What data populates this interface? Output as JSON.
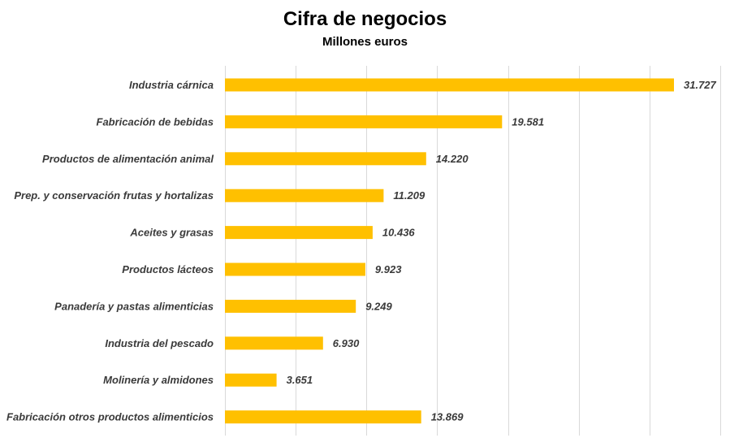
{
  "chart_data": {
    "type": "bar",
    "orientation": "horizontal",
    "title": "Cifra de negocios",
    "subtitle": "Millones euros",
    "categories": [
      "Industria cárnica",
      "Fabricación de bebidas",
      "Productos de alimentación animal",
      "Prep. y conservación frutas y hortalizas",
      "Aceites y grasas",
      "Productos lácteos",
      "Panadería y pastas alimenticias",
      "Industria del pescado",
      "Molinería y almidones",
      "Fabricación otros productos alimenticios"
    ],
    "values": [
      31727,
      19581,
      14220,
      11209,
      10436,
      9923,
      9249,
      6930,
      3651,
      13869
    ],
    "value_labels": [
      "31.727",
      "19.581",
      "14.220",
      "11.209",
      "10.436",
      "9.923",
      "9.249",
      "6.930",
      "3.651",
      "13.869"
    ],
    "xlim": [
      0,
      35000
    ],
    "x_tick_step": 5000,
    "grid": true,
    "x_tick_labels_visible": false,
    "bar_color": "#FFC000",
    "grid_color": "#D9D9D9",
    "label_color": "#3a3a3a"
  }
}
